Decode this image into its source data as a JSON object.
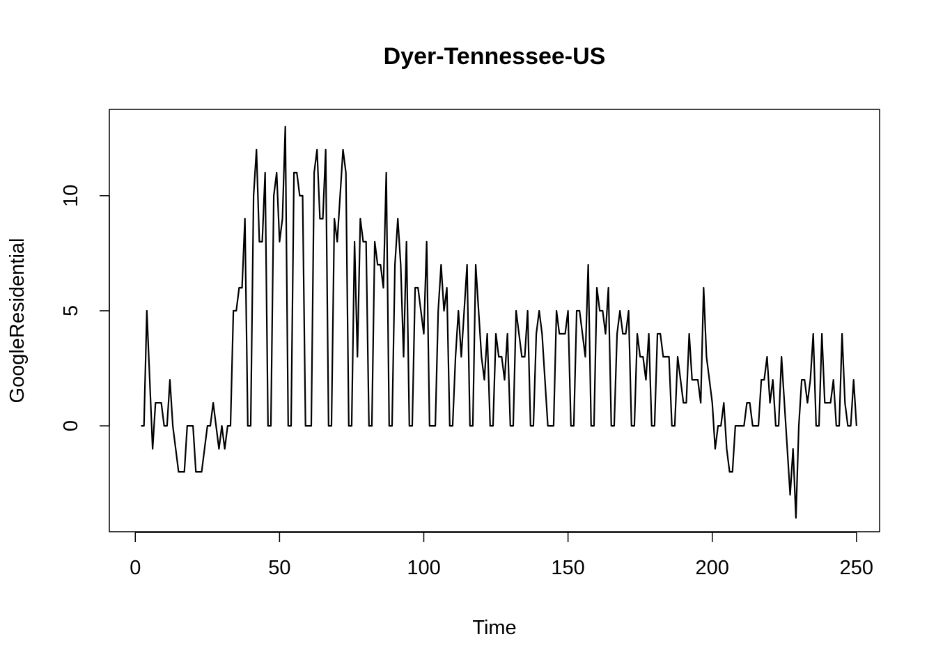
{
  "chart_data": {
    "type": "line",
    "title": "Dyer-Tennessee-US",
    "xlabel": "Time",
    "ylabel": "GoogleResidential",
    "xlim": [
      -9,
      258
    ],
    "ylim": [
      -4.6,
      13.75
    ],
    "x_ticks": [
      0,
      50,
      100,
      150,
      200,
      250
    ],
    "y_ticks": [
      0,
      5,
      10
    ],
    "grid": false,
    "legend": "none",
    "line_color": "#000000",
    "series": [
      {
        "x_start": 2,
        "values": [
          0,
          0,
          5,
          2,
          -1,
          1,
          1,
          1,
          0,
          0,
          2,
          0,
          -1,
          -2,
          -2,
          -2,
          0,
          0,
          0,
          -2,
          -2,
          -2,
          -1,
          0,
          0,
          1,
          0,
          -1,
          0,
          -1,
          0,
          0,
          5,
          5,
          6,
          6,
          9,
          0,
          0,
          10,
          12,
          8,
          8,
          11,
          0,
          0,
          10,
          11,
          8,
          9,
          13,
          0,
          0,
          11,
          11,
          10,
          10,
          0,
          0,
          0,
          11,
          12,
          9,
          9,
          12,
          0,
          0,
          9,
          8,
          10,
          12,
          11,
          0,
          0,
          8,
          3,
          9,
          8,
          8,
          0,
          0,
          8,
          7,
          7,
          6,
          11,
          0,
          0,
          7,
          9,
          7,
          3,
          8,
          0,
          0,
          6,
          6,
          5,
          4,
          8,
          0,
          0,
          0,
          5,
          7,
          5,
          6,
          0,
          0,
          3,
          5,
          3,
          5,
          7,
          0,
          0,
          7,
          5,
          3,
          2,
          4,
          0,
          0,
          4,
          3,
          3,
          2,
          4,
          0,
          0,
          5,
          4,
          3,
          3,
          5,
          0,
          0,
          4,
          5,
          4,
          2,
          0,
          0,
          0,
          5,
          4,
          4,
          4,
          5,
          0,
          0,
          5,
          5,
          4,
          3,
          7,
          0,
          0,
          6,
          5,
          5,
          4,
          6,
          0,
          0,
          4,
          5,
          4,
          4,
          5,
          0,
          0,
          4,
          3,
          3,
          2,
          4,
          0,
          0,
          4,
          4,
          3,
          3,
          3,
          0,
          0,
          3,
          2,
          1,
          1,
          4,
          2,
          2,
          2,
          1,
          6,
          3,
          2,
          1,
          -1,
          0,
          0,
          1,
          -1,
          -2,
          -2,
          0,
          0,
          0,
          0,
          1,
          1,
          0,
          0,
          0,
          2,
          2,
          3,
          1,
          2,
          0,
          0,
          3,
          1,
          -1,
          -3,
          -1,
          -4,
          0,
          2,
          2,
          1,
          2,
          4,
          0,
          0,
          4,
          1,
          1,
          1,
          2,
          0,
          0,
          4,
          1,
          0,
          0,
          2,
          0
        ]
      }
    ]
  }
}
